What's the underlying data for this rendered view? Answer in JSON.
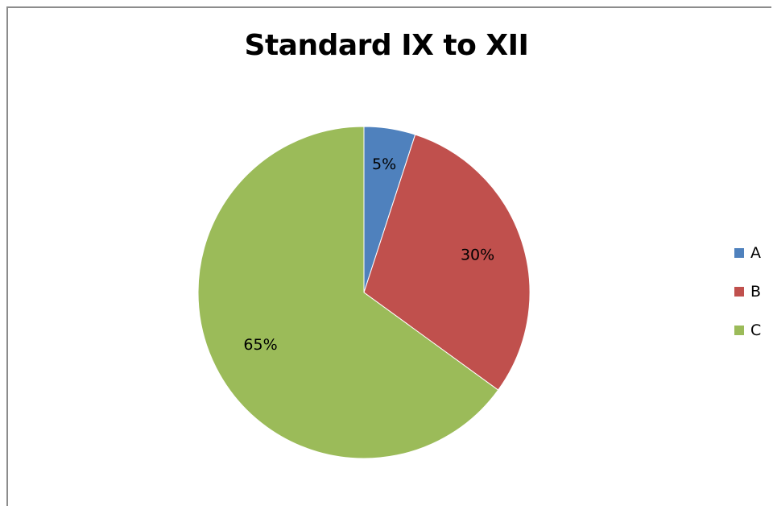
{
  "chart_data": {
    "type": "pie",
    "title": "Standard IX to XII",
    "categories": [
      "A",
      "B",
      "C"
    ],
    "values": [
      5,
      30,
      65
    ],
    "data_labels": [
      "5%",
      "30%",
      "65%"
    ],
    "colors": [
      "#4f81bd",
      "#c0504d",
      "#9bbb59"
    ],
    "legend_position": "right",
    "start_angle": "12 o'clock",
    "direction": "clockwise"
  }
}
